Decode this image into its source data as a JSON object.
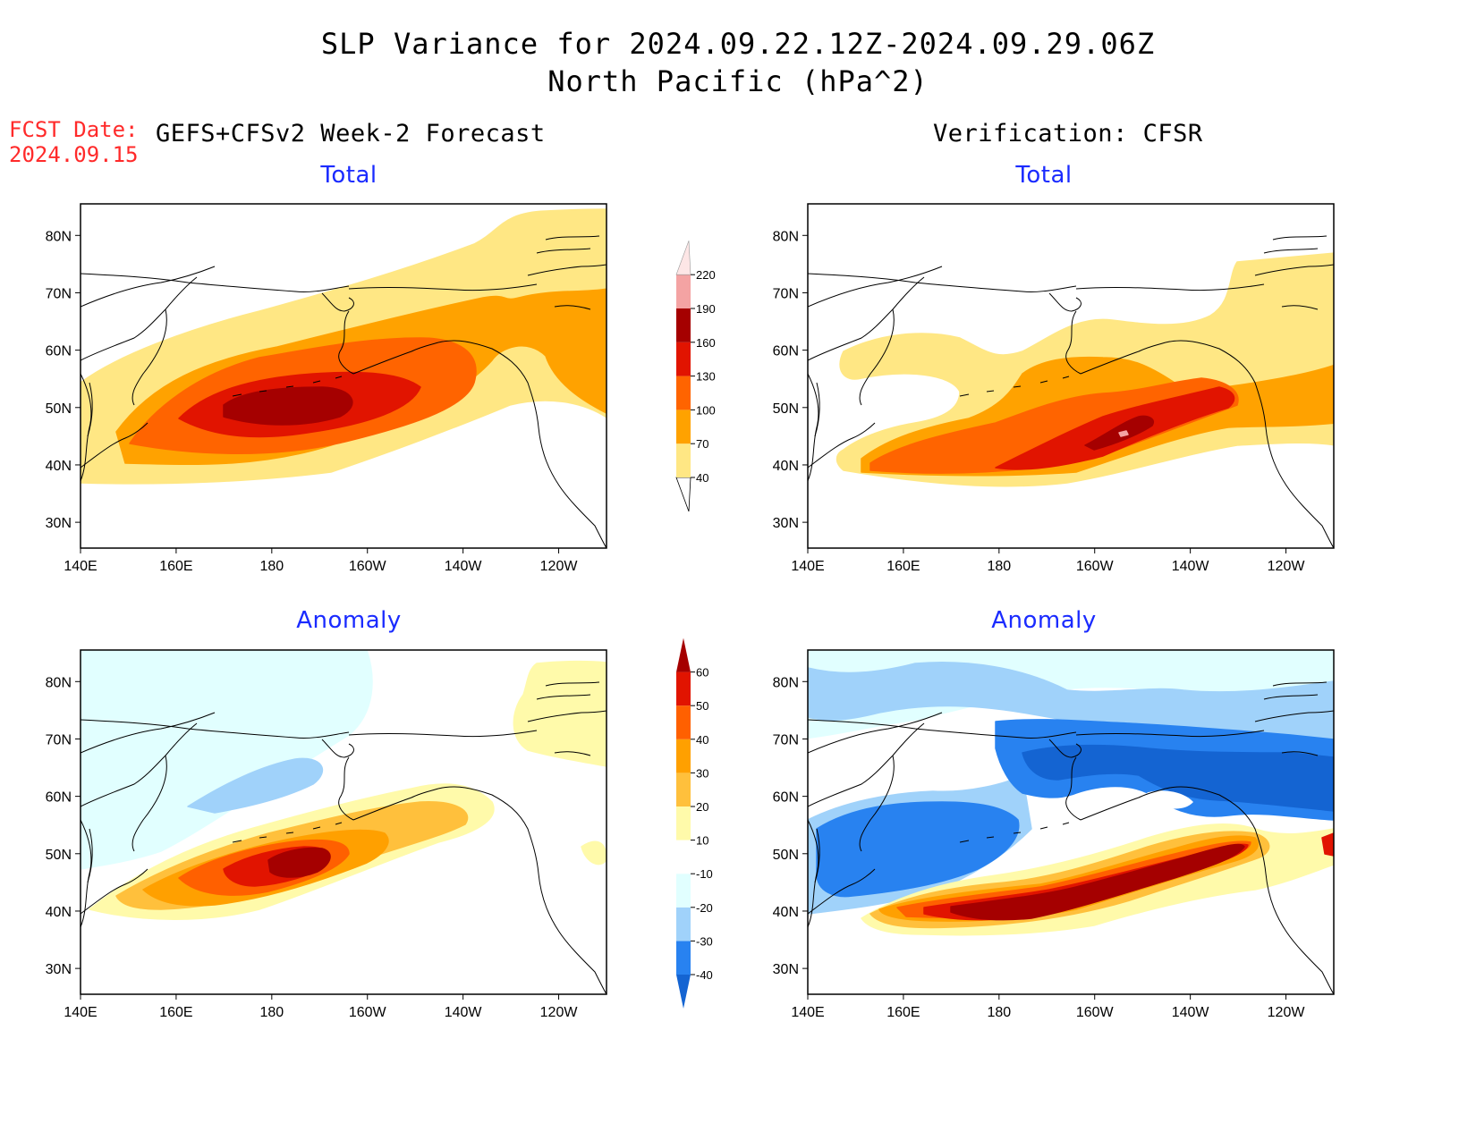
{
  "header": {
    "title_line1": "SLP Variance for 2024.09.22.12Z-2024.09.29.06Z",
    "title_line2": "North Pacific (hPa^2)"
  },
  "forecast_label": {
    "line1": "FCST Date:",
    "line2": "2024.09.15"
  },
  "left_column": {
    "heading": "GEFS+CFSv2 Week-2 Forecast"
  },
  "right_column": {
    "heading": "Verification: CFSR"
  },
  "panels": [
    {
      "id": "fcst-total",
      "title": "Total"
    },
    {
      "id": "verif-total",
      "title": "Total"
    },
    {
      "id": "fcst-anom",
      "title": "Anomaly"
    },
    {
      "id": "verif-anom",
      "title": "Anomaly"
    }
  ],
  "axes": {
    "lat_labels": [
      "80N",
      "70N",
      "60N",
      "50N",
      "40N",
      "30N"
    ],
    "lon_labels": [
      "140E",
      "160E",
      "180",
      "160W",
      "140W",
      "120W"
    ]
  },
  "colorbars": {
    "total": {
      "levels": [
        "40",
        "70",
        "100",
        "130",
        "160",
        "190",
        "220"
      ],
      "colors": [
        "#ffe784",
        "#ffa200",
        "#ff6400",
        "#e11400",
        "#a50000",
        "#f4a3a3",
        "#fde6e6"
      ]
    },
    "anomaly": {
      "levels": [
        "-40",
        "-30",
        "-20",
        "-10",
        "10",
        "20",
        "30",
        "40",
        "50",
        "60"
      ],
      "colors": [
        "#1464d2",
        "#2882f0",
        "#a0d2fa",
        "#e1ffff",
        "#ffffff",
        "#fffaaa",
        "#ffc03c",
        "#ffa000",
        "#ff6000",
        "#e11400",
        "#a50000"
      ]
    }
  }
}
